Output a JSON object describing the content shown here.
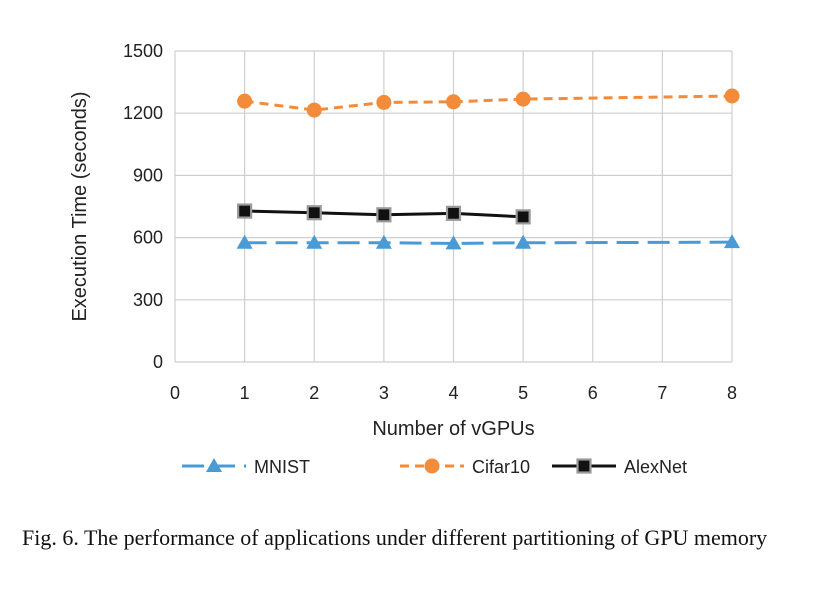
{
  "chart_data": {
    "type": "line",
    "xlabel": "Number of vGPUs",
    "ylabel": "Execution Time (seconds)",
    "categories": [
      "0",
      "1",
      "2",
      "3",
      "4",
      "5",
      "6",
      "7",
      "8"
    ],
    "ylim": [
      0,
      1500
    ],
    "yticks": [
      0,
      300,
      600,
      900,
      1200,
      1500
    ],
    "grid": true,
    "legend_position": "bottom",
    "series": [
      {
        "name": "MNIST",
        "color": "#4a9bd5",
        "marker": "triangle",
        "line_style": "long-dash",
        "x": [
          "1",
          "2",
          "3",
          "4",
          "5",
          "8"
        ],
        "values": [
          575,
          575,
          575,
          572,
          575,
          578
        ]
      },
      {
        "name": "Cifar10",
        "color": "#f28c3a",
        "marker": "circle",
        "line_style": "short-dash",
        "x": [
          "1",
          "2",
          "3",
          "4",
          "5",
          "8"
        ],
        "values": [
          1258,
          1215,
          1252,
          1255,
          1268,
          1283
        ]
      },
      {
        "name": "AlexNet",
        "color": "#111111",
        "marker": "square",
        "line_style": "solid",
        "x": [
          "1",
          "2",
          "3",
          "4",
          "5"
        ],
        "values": [
          728,
          720,
          710,
          717,
          700
        ]
      }
    ]
  },
  "caption": "Fig. 6.  The performance of applications under different partitioning of GPU memory"
}
